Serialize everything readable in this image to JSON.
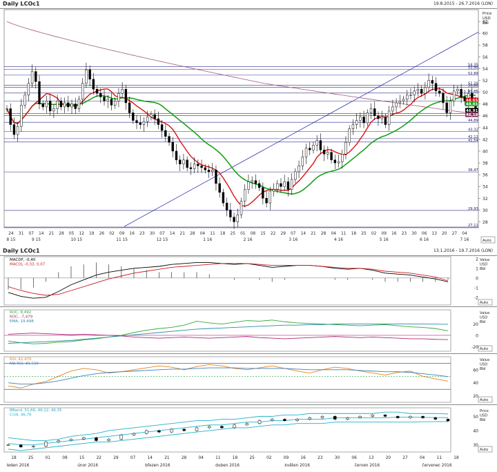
{
  "main": {
    "title": "Daily LCOc1",
    "range": "19.8.2015 - 26.7.2016 (LON)",
    "axis_unit": [
      "Price",
      "USD",
      "Bbl"
    ],
    "auto_label": "Auto"
  },
  "macd": {
    "title": "Daily LCOc1",
    "range": "13.1.2016 - 19.7.2016 (LON)",
    "legend": [
      "MACDF, -0,40",
      "MACDL -0,33, 0,07"
    ],
    "axis_unit": [
      "Value",
      "USD",
      "Bbl"
    ],
    "auto_label": "Auto"
  },
  "roc": {
    "legend": [
      "ROC, 8,492",
      "ROC, -7,479",
      "EMA, 19,498"
    ],
    "axis_unit": [
      "Value",
      "USD",
      "Bbl"
    ],
    "auto_label": "Auto"
  },
  "rsi": {
    "legend": [
      "RSI, 42,470",
      "MA RSI, 49,530"
    ],
    "axis_unit": [
      "Value",
      "USD",
      "Bbl"
    ],
    "auto_label": "Auto"
  },
  "bb": {
    "legend": [
      "BBand, 51,66, 49,12, 46,35",
      "Cndl, 46,76"
    ],
    "axis_unit": [
      "Price",
      "USD",
      "Bbl"
    ],
    "auto_label": "Auto"
  },
  "chart_data": [
    {
      "type": "candlestick",
      "title": "Daily LCOc1",
      "ylabel": "Price USD Bbl",
      "ylim": [
        27,
        64
      ],
      "yticks": [
        28,
        30,
        32,
        34,
        36,
        38,
        40,
        42,
        44,
        46,
        48,
        50,
        52,
        54,
        56,
        58,
        60,
        62
      ],
      "x_day_labels": [
        "24",
        "31",
        "07",
        "14",
        "21",
        "28",
        "05",
        "12",
        "19",
        "26",
        "02",
        "09",
        "16",
        "23",
        "30",
        "07",
        "14",
        "21",
        "28",
        "04",
        "11",
        "18",
        "25",
        "01",
        "08",
        "15",
        "22",
        "29",
        "07",
        "14",
        "21",
        "28",
        "04",
        "11",
        "18",
        "25",
        "02",
        "09",
        "16",
        "23",
        "30",
        "06",
        "13",
        "20",
        "27",
        "04"
      ],
      "x_month_labels": [
        "8 15",
        "9 15",
        "10 15",
        "11 15",
        "12 15",
        "1 16",
        "2 16",
        "3 16",
        "4 16",
        "5 16",
        "6 16",
        "7 16"
      ],
      "horizontal_levels": [
        54.35,
        53.9,
        52.89,
        51.2,
        50.8,
        49.86,
        48.5,
        46.4,
        46.0,
        44.89,
        43.32,
        42.12,
        41.54,
        36.47,
        29.93,
        27.11
      ],
      "level_labels": [
        "54,35",
        "53,90",
        "52,89",
        "51,20",
        "50,80",
        "49,86",
        "48,5",
        "46,4",
        "46,0",
        "44,89",
        "43,32",
        "42,12",
        "41,54",
        "36,47",
        "29,93",
        "27,11"
      ],
      "price_tags": [
        {
          "value": 48.65,
          "text": "48,65",
          "color": "#d40000"
        },
        {
          "value": 48.01,
          "text": "48,01",
          "color": "#19a019"
        },
        {
          "value": 46.91,
          "text": "46,91",
          "color": "#000000"
        },
        {
          "value": 46.18,
          "text": "46,18",
          "color": "#8b3a62"
        }
      ],
      "close": [
        47.2,
        44.5,
        42.8,
        44.2,
        47.8,
        49.5,
        51.5,
        53.5,
        51.8,
        48.0,
        47.5,
        48.5,
        46.8,
        47.2,
        48.5,
        47.5,
        48.2,
        47.5,
        48.0,
        47.2,
        48.8,
        51.5,
        53.8,
        52.2,
        50.5,
        49.8,
        49.2,
        48.5,
        48.8,
        47.8,
        48.5,
        49.8,
        50.5,
        48.2,
        46.5,
        45.2,
        44.8,
        44.5,
        45.0,
        45.8,
        46.2,
        45.5,
        44.5,
        43.5,
        42.5,
        41.5,
        40.0,
        38.5,
        37.8,
        38.5,
        37.2,
        37.0,
        37.8,
        37.5,
        37.2,
        36.8,
        36.5,
        36.8,
        34.5,
        33.0,
        31.2,
        30.0,
        28.8,
        28.0,
        29.2,
        31.5,
        33.5,
        34.8,
        35.0,
        34.5,
        33.8,
        32.0,
        31.2,
        33.2,
        33.5,
        34.5,
        34.0,
        34.8,
        33.5,
        35.2,
        36.5,
        37.5,
        39.0,
        40.5,
        40.2,
        41.0,
        41.8,
        40.2,
        39.5,
        39.8,
        38.5,
        38.0,
        38.2,
        39.5,
        41.5,
        43.8,
        44.5,
        45.2,
        45.8,
        44.8,
        46.5,
        47.2,
        46.0,
        45.5,
        45.8,
        44.5,
        46.8,
        47.5,
        48.2,
        48.5,
        48.8,
        49.5,
        49.5,
        50.2,
        50.5,
        49.8,
        50.8,
        52.0,
        51.5,
        50.2,
        49.8,
        48.2,
        46.5,
        48.5,
        50.2,
        50.5,
        49.2,
        48.5,
        49.8,
        48.6,
        46.9
      ]
    },
    {
      "type": "line",
      "title": "MACD",
      "series": [
        {
          "name": "MACDF",
          "values": [
            -1.5,
            -1.9,
            -2.1,
            -2.0,
            -1.4,
            -0.7,
            -0.2,
            0.3,
            0.6,
            0.8,
            1.0,
            1.1,
            1.2,
            1.4,
            1.5,
            1.6,
            1.6,
            1.5,
            1.4,
            1.5,
            1.3,
            1.1,
            1.2,
            1.3,
            1.3,
            1.2,
            1.0,
            0.9,
            1.0,
            0.8,
            0.5,
            0.4,
            0.3,
            0.1,
            -0.1,
            -0.4
          ]
        },
        {
          "name": "MACDL",
          "values": [
            -0.9,
            -1.3,
            -1.6,
            -1.8,
            -1.7,
            -1.3,
            -0.9,
            -0.5,
            -0.1,
            0.2,
            0.5,
            0.7,
            0.9,
            1.1,
            1.2,
            1.3,
            1.4,
            1.5,
            1.5,
            1.5,
            1.4,
            1.3,
            1.3,
            1.3,
            1.3,
            1.2,
            1.1,
            1.0,
            1.0,
            0.9,
            0.7,
            0.6,
            0.5,
            0.3,
            0.1,
            -0.3
          ]
        }
      ],
      "yticks": [
        -2,
        -1,
        0,
        1,
        2
      ],
      "ylim": [
        -2.8,
        2.2
      ]
    },
    {
      "type": "line",
      "title": "ROC",
      "series": [
        {
          "name": "ROC",
          "values": [
            -10,
            -13,
            -15,
            -14,
            -12,
            -11,
            -8,
            -6,
            -3,
            0,
            5,
            9,
            12,
            14,
            18,
            25,
            22,
            20,
            23,
            26,
            25,
            27,
            24,
            22,
            21,
            20,
            19,
            18,
            17,
            18,
            19,
            17,
            15,
            14,
            12,
            8
          ]
        },
        {
          "name": "ROC",
          "values": [
            2,
            3,
            4,
            3,
            2,
            1,
            2,
            1,
            0,
            -1,
            -3,
            -4,
            -5,
            -4,
            -3,
            -4,
            -5,
            -4,
            -3,
            -2,
            -4,
            -5,
            -6,
            -5,
            -4,
            -3,
            -2,
            -3,
            -4,
            -3,
            -4,
            -5,
            -6,
            -6,
            -7,
            -7.5
          ]
        },
        {
          "name": "EMA",
          "values": [
            -14,
            -13,
            -12,
            -11,
            -10,
            -9,
            -7,
            -5,
            -3,
            -1,
            1,
            3,
            5,
            7,
            9,
            11,
            12,
            13,
            14,
            15,
            16,
            17,
            18,
            18,
            19,
            19,
            20,
            20,
            20,
            20,
            20,
            20,
            20,
            20,
            19.8,
            19.5
          ]
        }
      ],
      "yticks": [
        -20,
        0,
        20
      ],
      "ylim": [
        -28,
        45
      ]
    },
    {
      "type": "line",
      "title": "RSI",
      "series": [
        {
          "name": "RSI",
          "values": [
            35,
            32,
            38,
            42,
            50,
            58,
            62,
            60,
            55,
            57,
            60,
            63,
            66,
            64,
            60,
            65,
            68,
            66,
            62,
            60,
            63,
            66,
            62,
            58,
            55,
            60,
            64,
            62,
            58,
            55,
            52,
            56,
            58,
            50,
            46,
            42.5
          ]
        },
        {
          "name": "MA RSI",
          "values": [
            40,
            38,
            38,
            40,
            43,
            47,
            51,
            54,
            56,
            57,
            58,
            59,
            60,
            61,
            61,
            62,
            63,
            63,
            63,
            62,
            62,
            62,
            62,
            61,
            60,
            60,
            60,
            60,
            59,
            58,
            57,
            57,
            56,
            54,
            52,
            49.5
          ]
        }
      ],
      "yticks": [
        20,
        40,
        60
      ],
      "ylim": [
        10,
        80
      ]
    },
    {
      "type": "candlestick",
      "title": "Bollinger Bands",
      "series": [
        {
          "name": "BBand upper",
          "values": [
            35,
            34,
            33,
            33,
            34,
            36,
            37,
            38,
            40,
            41,
            42,
            43,
            44,
            45,
            46,
            47,
            47,
            48,
            48,
            49,
            50,
            50,
            51,
            51,
            52,
            52,
            52,
            52,
            52,
            52,
            53,
            53,
            52,
            52,
            52,
            51.7
          ]
        },
        {
          "name": "BBand middle",
          "values": [
            31,
            30,
            30,
            31,
            32,
            33,
            34,
            35,
            36,
            37,
            38,
            39,
            40,
            41,
            42,
            43,
            44,
            44,
            45,
            46,
            46,
            47,
            47,
            48,
            48,
            48,
            49,
            49,
            49,
            49,
            49,
            49.5,
            49.5,
            49.3,
            49.2,
            49.1
          ]
        },
        {
          "name": "BBand lower",
          "values": [
            27,
            26,
            27,
            28,
            29,
            30,
            31,
            32,
            32,
            33,
            34,
            35,
            36,
            37,
            38,
            39,
            40,
            41,
            42,
            42,
            43,
            44,
            44,
            45,
            45,
            45,
            46,
            46,
            46,
            46,
            46,
            46,
            46,
            46.2,
            46.3,
            46.35
          ]
        }
      ],
      "close": [
        30,
        28.5,
        29,
        32,
        33,
        34,
        35,
        33,
        34,
        37,
        38,
        40,
        39,
        41,
        40,
        42,
        43,
        42,
        44,
        45,
        47,
        48,
        47,
        48,
        49,
        50,
        48,
        49,
        50,
        51,
        50,
        49,
        50,
        49,
        48,
        46.8
      ],
      "yticks": [
        30,
        40,
        50
      ],
      "ylim": [
        25,
        56
      ],
      "x_day_labels": [
        "18",
        "25",
        "01",
        "08",
        "15",
        "22",
        "29",
        "07",
        "14",
        "21",
        "28",
        "04",
        "11",
        "18",
        "25",
        "02",
        "09",
        "16",
        "23",
        "30",
        "06",
        "13",
        "20",
        "27",
        "04",
        "11",
        "18"
      ],
      "x_month_labels": [
        "leden 2016",
        "únor 2016",
        "březen 2016",
        "duben 2016",
        "květen 2016",
        "červen 2016",
        "červenec 2016"
      ]
    }
  ]
}
